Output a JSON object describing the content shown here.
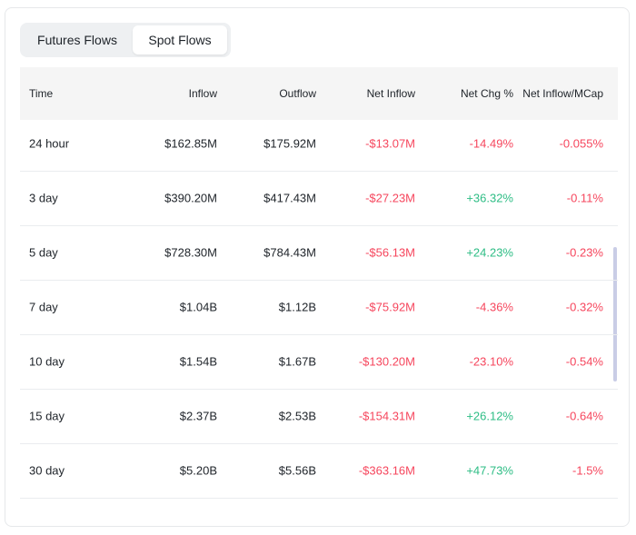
{
  "tabs": [
    "Futures Flows",
    "Spot Flows"
  ],
  "table": {
    "header": [
      "Time",
      "Inflow",
      "Outflow",
      "Net Inflow",
      "Net Chg %",
      "Net Inflow/MCap"
    ],
    "rows": [
      [
        "24 hour",
        "$162.85M",
        "$175.92M",
        "-$13.07M",
        "-14.49%",
        "-0.055%"
      ],
      [
        "3 day",
        "$390.20M",
        "$417.43M",
        "-$27.23M",
        "+36.32%",
        "-0.11%"
      ],
      [
        "5 day",
        "$728.30M",
        "$784.43M",
        "-$56.13M",
        "+24.23%",
        "-0.23%"
      ],
      [
        "7 day",
        "$1.04B",
        "$1.12B",
        "-$75.92M",
        "-4.36%",
        "-0.32%"
      ],
      [
        "10 day",
        "$1.54B",
        "$1.67B",
        "-$130.20M",
        "-23.10%",
        "-0.54%"
      ],
      [
        "15 day",
        "$2.37B",
        "$2.53B",
        "-$154.31M",
        "+26.12%",
        "-0.64%"
      ],
      [
        "30 day",
        "$5.20B",
        "$5.56B",
        "-$363.16M",
        "+47.73%",
        "-1.5%"
      ]
    ]
  }
}
